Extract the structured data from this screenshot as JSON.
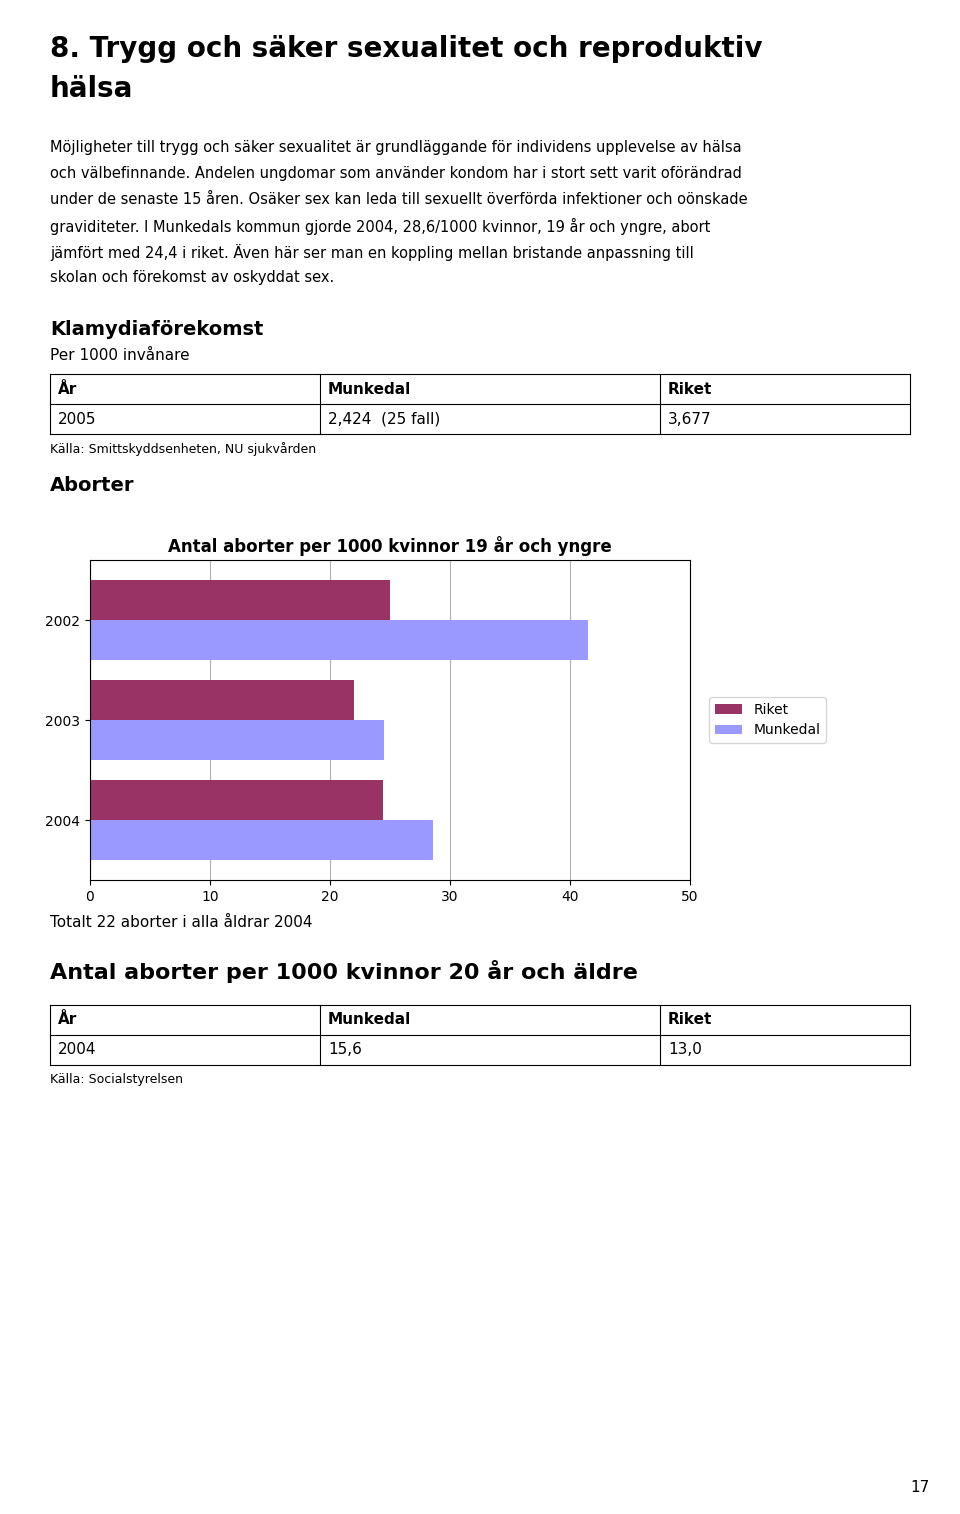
{
  "heading": [
    "8. Trygg och säker sexualitet och reproduktiv",
    "hälsa"
  ],
  "intro": [
    "Möjligheter till trygg och säker sexualitet är grundläggande för individens upplevelse av hälsa",
    "och välbefinnande. Andelen ungdomar som använder kondom har i stort sett varit oförändrad",
    "under de senaste 15 åren. Osäker sex kan leda till sexuellt överförda infektioner och oönskade",
    "graviditeter. I Munkedals kommun gjorde 2004, 28,6/1000 kvinnor, 19 år och yngre, abort",
    "jämfört med 24,4 i riket. Även här ser man en koppling mellan bristande anpassning till",
    "skolan och förekomst av oskyddat sex."
  ],
  "table_before": {
    "title": "Klamydiaförekomst",
    "subtitle": "Per 1000 invånare",
    "headers": [
      "År",
      "Munkedal",
      "Riket"
    ],
    "rows": [
      [
        "2005",
        "2,424  (25 fall)",
        "3,677"
      ]
    ],
    "source": "Källa: Smittskyddsenheten, NU sjukvården"
  },
  "section": "Aborter",
  "chart_data": {
    "type": "bar",
    "orientation": "horizontal",
    "title": "Antal aborter per 1000 kvinnor 19 år och yngre",
    "categories": [
      "2004",
      "2003",
      "2002"
    ],
    "series": [
      {
        "name": "Riket",
        "color": "#993366",
        "values": [
          24.4,
          22.0,
          25.0
        ]
      },
      {
        "name": "Munkedal",
        "color": "#9999ff",
        "values": [
          28.6,
          24.5,
          41.5
        ]
      }
    ],
    "xlim": [
      0,
      50
    ],
    "xticks": [
      0,
      10,
      20,
      30,
      40,
      50
    ],
    "grid": true,
    "legend": "right"
  },
  "note": "Totalt 22 aborter i alla åldrar 2004",
  "table_after": {
    "title": "Antal aborter per 1000 kvinnor 20 år och äldre",
    "headers": [
      "År",
      "Munkedal",
      "Riket"
    ],
    "rows": [
      [
        "2004",
        "15,6",
        "13,0"
      ]
    ],
    "source": "Källa: Socialstyrelsen"
  },
  "page_number": "17"
}
